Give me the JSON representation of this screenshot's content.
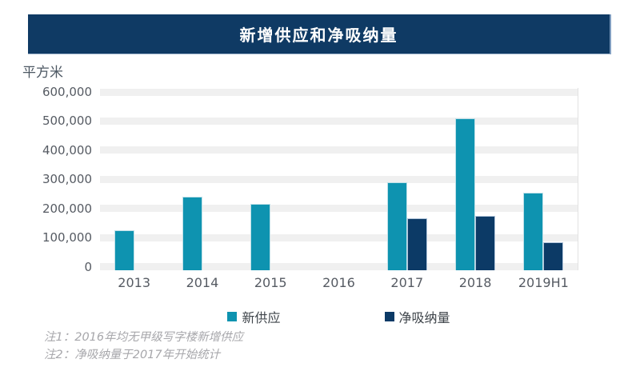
{
  "header": {
    "title": "新增供应和净吸纳量"
  },
  "chart_data": {
    "type": "bar",
    "title": "新增供应和净吸纳量",
    "xlabel": "",
    "ylabel": "平方米",
    "categories": [
      "2013",
      "2014",
      "2015",
      "2016",
      "2017",
      "2018",
      "2019H1"
    ],
    "series": [
      {
        "name": "新供应",
        "key": "new-supply",
        "color": "#0E93B0",
        "values": [
          125000,
          240000,
          215000,
          null,
          290000,
          510000,
          255000
        ]
      },
      {
        "name": "净吸纳量",
        "key": "net-absorption",
        "color": "#0C3A66",
        "values": [
          null,
          null,
          null,
          null,
          165000,
          175000,
          85000
        ]
      }
    ],
    "ylim": [
      0,
      600000
    ],
    "ytick_values": [
      0,
      100000,
      200000,
      300000,
      400000,
      500000,
      600000
    ],
    "yticks": [
      "0",
      "100,000",
      "200,000",
      "300,000",
      "400,000",
      "500,000",
      "600,000"
    ],
    "grid": "horizontal-bands",
    "legend_position": "bottom",
    "annotations": [
      "注1：2016年均无甲级写字楼新增供应",
      "注2：净吸纳量于2017年开始统计"
    ]
  },
  "notes": [
    "注1：2016年均无甲级写字楼新增供应",
    "注2：净吸纳量于2017年开始统计"
  ],
  "colors": {
    "header_bg": "#0F3A64",
    "header_edge": "#7E9CBF",
    "band": "#F0F0F0",
    "axis_text": "#565B63",
    "legend_text": "#3F454B",
    "note_text": "#A7A7AB",
    "new_supply": "#0E93B0",
    "net_absorption": "#0C3A66"
  }
}
